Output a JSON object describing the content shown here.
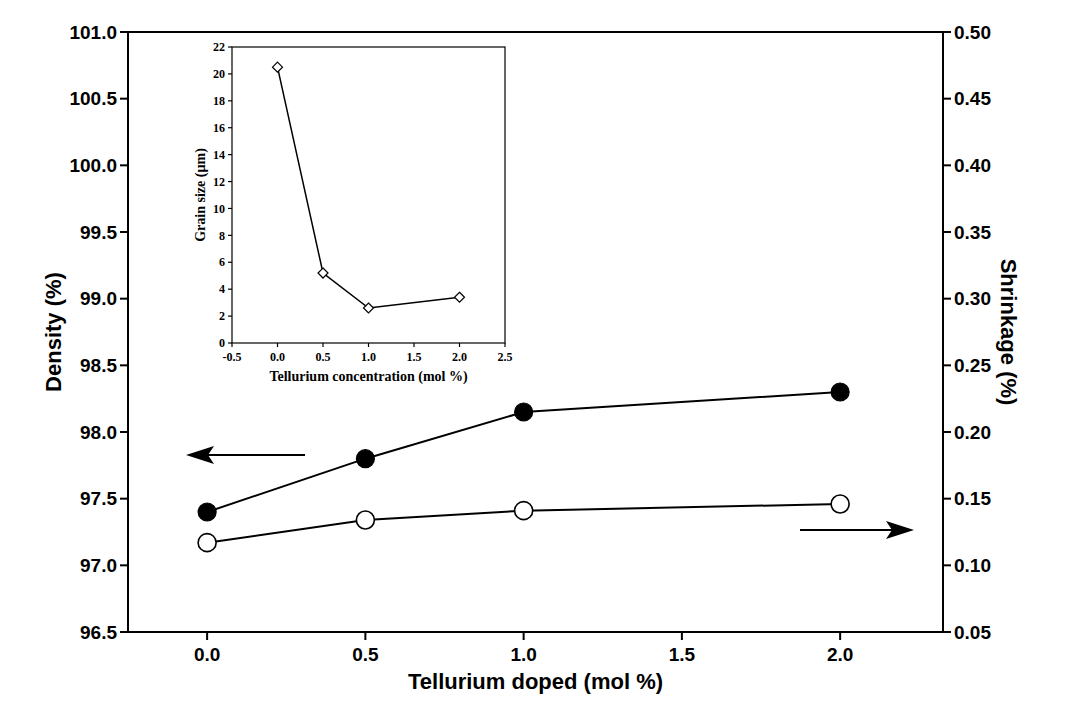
{
  "chart_data": [
    {
      "type": "line",
      "x_label": "Tellurium doped (mol %)",
      "y_label": "Density (%)",
      "y2_label": "Shrinkage (%)",
      "x": [
        0,
        0.5,
        1,
        2
      ],
      "series": [
        {
          "values": [
            97.4,
            97.8,
            98.15,
            98.3
          ],
          "color": "#000000",
          "marker": "filled-circle",
          "line_style": "solid"
        },
        {
          "values": [
            0.117,
            0.134,
            0.141,
            0.146
          ],
          "axis": "y2",
          "color": "#000000",
          "marker": "open-circle",
          "line_style": "solid"
        }
      ],
      "xlim": [
        -0.25,
        2.325
      ],
      "xticks": [
        {
          "value": 0,
          "label": "0.0"
        },
        0.5,
        {
          "value": 1,
          "label": "1.0"
        },
        1.5,
        {
          "value": 2,
          "label": "2.0"
        }
      ],
      "ylim": [
        96.5,
        101
      ],
      "yticks": [
        96.5,
        {
          "value": 97,
          "label": "97.0"
        },
        97.5,
        {
          "value": 98,
          "label": "98.0"
        },
        98.5,
        {
          "value": 99,
          "label": "99.0"
        },
        99.5,
        {
          "value": 100,
          "label": "100.0"
        },
        100.5,
        {
          "value": 101,
          "label": "101.0"
        }
      ],
      "y2lim": [
        0.05,
        0.5
      ],
      "y2ticks": [
        0.05,
        {
          "value": 0.1,
          "label": "0.10"
        },
        0.15,
        {
          "value": 0.2,
          "label": "0.20"
        },
        0.25,
        {
          "value": 0.3,
          "label": "0.30"
        },
        0.35,
        {
          "value": 0.4,
          "label": "0.40"
        },
        0.45,
        {
          "value": 0.5,
          "label": "0.50"
        }
      ],
      "grid": false
    },
    {
      "type": "line",
      "x_label": "Tellurium concentration (mol %)",
      "y_label": "Grain size (µm)",
      "x": [
        0,
        0.5,
        1,
        2
      ],
      "series": [
        {
          "values": [
            20.5,
            5.2,
            2.6,
            3.4
          ],
          "color": "#000000",
          "marker": "open-diamond",
          "line_style": "solid"
        }
      ],
      "xlim": [
        -0.5,
        2.5
      ],
      "xticks": [
        -0.5,
        {
          "value": 0,
          "label": "0.0"
        },
        0.5,
        {
          "value": 1,
          "label": "1.0"
        },
        1.5,
        {
          "value": 2,
          "label": "2.0"
        },
        2.5
      ],
      "ylim": [
        0,
        22
      ],
      "yticks": [
        0,
        2,
        4,
        6,
        8,
        10,
        12,
        14,
        16,
        18,
        20,
        22
      ],
      "grid": false
    }
  ]
}
